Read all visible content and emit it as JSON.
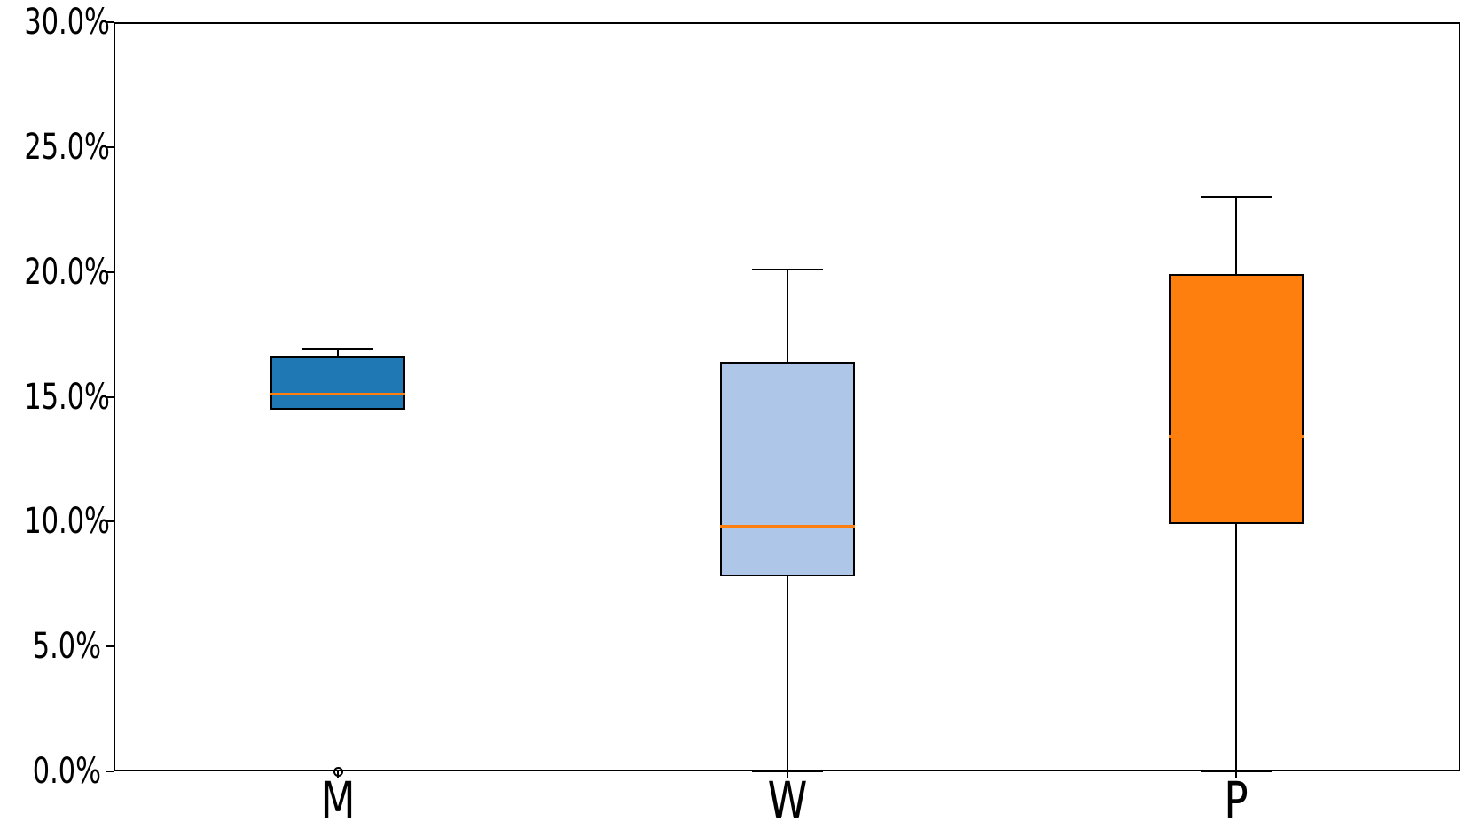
{
  "chart_data": {
    "type": "boxplot",
    "title": "",
    "xlabel": "",
    "ylabel": "",
    "categories": [
      "M",
      "W",
      "P"
    ],
    "ylim": [
      0,
      30
    ],
    "ytick_format": "percent",
    "yticks": [
      {
        "value": 0,
        "label": "0.0%"
      },
      {
        "value": 5,
        "label": "5.0%"
      },
      {
        "value": 10,
        "label": "10.0%"
      },
      {
        "value": 15,
        "label": "15.0%"
      },
      {
        "value": 20,
        "label": "20.0%"
      },
      {
        "value": 25,
        "label": "25.0%"
      },
      {
        "value": 30,
        "label": "30.0%"
      }
    ],
    "grid": false,
    "legend": false,
    "colors": {
      "median_line": "#ff7f0e",
      "box_edge": "#000000",
      "axis": "#000000",
      "background": "#ffffff"
    },
    "series": [
      {
        "category": "M",
        "fill": "#1f77b4",
        "whisker_low": 14.5,
        "q1": 14.5,
        "median": 15.1,
        "q3": 16.6,
        "whisker_high": 16.9,
        "fliers": [
          0.0
        ]
      },
      {
        "category": "W",
        "fill": "#aec7e8",
        "whisker_low": 0.0,
        "q1": 7.8,
        "median": 9.8,
        "q3": 16.4,
        "whisker_high": 20.1,
        "fliers": []
      },
      {
        "category": "P",
        "fill": "#ff7f0e",
        "whisker_low": 0.0,
        "q1": 9.9,
        "median": 13.4,
        "q3": 19.9,
        "whisker_high": 23.0,
        "fliers": []
      }
    ]
  }
}
